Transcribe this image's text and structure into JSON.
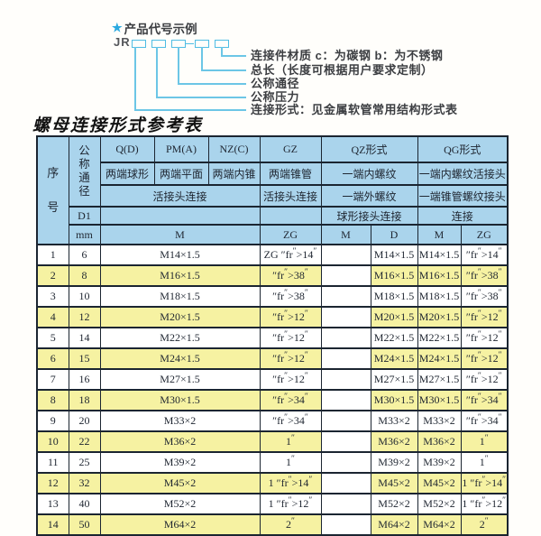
{
  "colors": {
    "accent_cyan": "#4fbde4",
    "header_bg": "#aad4ec",
    "stripe_yellow": "#f6f2a2",
    "border": "#1b2531"
  },
  "product_code": {
    "star": "★",
    "title": "产品代号示例",
    "prefix": "JR",
    "labels": [
      "连接件材质  c：为碳钢  b：为不锈钢",
      "总长（长度可根据用户要求定制）",
      "公称通径",
      "公称压力",
      "连接形式：见金属软管常用结构形式表"
    ]
  },
  "table_title": "螺母连接形式参考表",
  "table": {
    "header": {
      "seq": "序\n号",
      "nominal_diameter": "公\n称\n通\n径",
      "d1": "D1",
      "mm": "mm",
      "col_q": "Q(D)",
      "col_q_desc": "两端球形",
      "col_pm": "PM(A)",
      "col_pm_desc": "两端平面",
      "col_nz": "NZ(C)",
      "col_nz_desc": "两端内锥",
      "col_gz": "GZ",
      "col_gz_desc": "两端锥管",
      "union_conn_left": "活接头连接",
      "union_conn_gz": "活接头连接",
      "col_qz": "QZ形式",
      "qz_desc1": "一端内螺纹",
      "qz_desc2": "一端外螺纹",
      "qz_desc3": "球形接头连接",
      "col_qg": "QG形式",
      "qg_desc1": "一端内螺纹活接头",
      "qg_desc2": "一端锥管螺纹接头",
      "qg_desc3": "连接",
      "m_label": "M",
      "zg_label": "ZG",
      "qz_m": "M",
      "qz_d": "D",
      "qg_m": "M",
      "qg_zg": "ZG"
    },
    "rows": [
      {
        "no": "1",
        "dn": "6",
        "m": "M14×1.5",
        "gz": "ZG 1/4\"",
        "qz_m": "",
        "qz_d": "M14×1.5",
        "qg_m": "M14×1.5",
        "qg_zg": "1/4\""
      },
      {
        "no": "2",
        "dn": "8",
        "m": "M16×1.5",
        "gz": "3/8\"",
        "qz_m": "",
        "qz_d": "M16×1.5",
        "qg_m": "M16×1.5",
        "qg_zg": "3/8\""
      },
      {
        "no": "3",
        "dn": "10",
        "m": "M18×1.5",
        "gz": "3/8\"",
        "qz_m": "",
        "qz_d": "M18×1.5",
        "qg_m": "M18×1.5",
        "qg_zg": "3/8\""
      },
      {
        "no": "4",
        "dn": "12",
        "m": "M20×1.5",
        "gz": "1/2\"",
        "qz_m": "",
        "qz_d": "M20×1.5",
        "qg_m": "M20×1.5",
        "qg_zg": "1/2\""
      },
      {
        "no": "5",
        "dn": "14",
        "m": "M22×1.5",
        "gz": "1/2\"",
        "qz_m": "",
        "qz_d": "M22×1.5",
        "qg_m": "M22×1.5",
        "qg_zg": "1/2\""
      },
      {
        "no": "6",
        "dn": "15",
        "m": "M24×1.5",
        "gz": "1/2\"",
        "qz_m": "",
        "qz_d": "M24×1.5",
        "qg_m": "M24×1.5",
        "qg_zg": "1/2\""
      },
      {
        "no": "7",
        "dn": "16",
        "m": "M27×1.5",
        "gz": "1/2\"",
        "qz_m": "",
        "qz_d": "M27×1.5",
        "qg_m": "M27×1.5",
        "qg_zg": "1/2\""
      },
      {
        "no": "8",
        "dn": "18",
        "m": "M30×1.5",
        "gz": "3/4\"",
        "qz_m": "",
        "qz_d": "M30×1.5",
        "qg_m": "M30×1.5",
        "qg_zg": "3/4\""
      },
      {
        "no": "9",
        "dn": "20",
        "m": "M33×2",
        "gz": "3/4\"",
        "qz_m": "",
        "qz_d": "M33×2",
        "qg_m": "M33×2",
        "qg_zg": "3/4\""
      },
      {
        "no": "10",
        "dn": "22",
        "m": "M36×2",
        "gz": "1\"",
        "qz_m": "",
        "qz_d": "M36×2",
        "qg_m": "M36×2",
        "qg_zg": "1\""
      },
      {
        "no": "11",
        "dn": "25",
        "m": "M39×2",
        "gz": "1\"",
        "qz_m": "",
        "qz_d": "M39×2",
        "qg_m": "M39×2",
        "qg_zg": "1\""
      },
      {
        "no": "12",
        "dn": "32",
        "m": "M45×2",
        "gz": "1 1/4\"",
        "qz_m": "",
        "qz_d": "M45×2",
        "qg_m": "M45×2",
        "qg_zg": "1 1/4\""
      },
      {
        "no": "13",
        "dn": "40",
        "m": "M52×2",
        "gz": "1 1/2\"",
        "qz_m": "",
        "qz_d": "M52×2",
        "qg_m": "M52×2",
        "qg_zg": "1 1/2\""
      },
      {
        "no": "14",
        "dn": "50",
        "m": "M64×2",
        "gz": "2\"",
        "qz_m": "",
        "qz_d": "M64×2",
        "qg_m": "M64×2",
        "qg_zg": "2\""
      }
    ]
  }
}
